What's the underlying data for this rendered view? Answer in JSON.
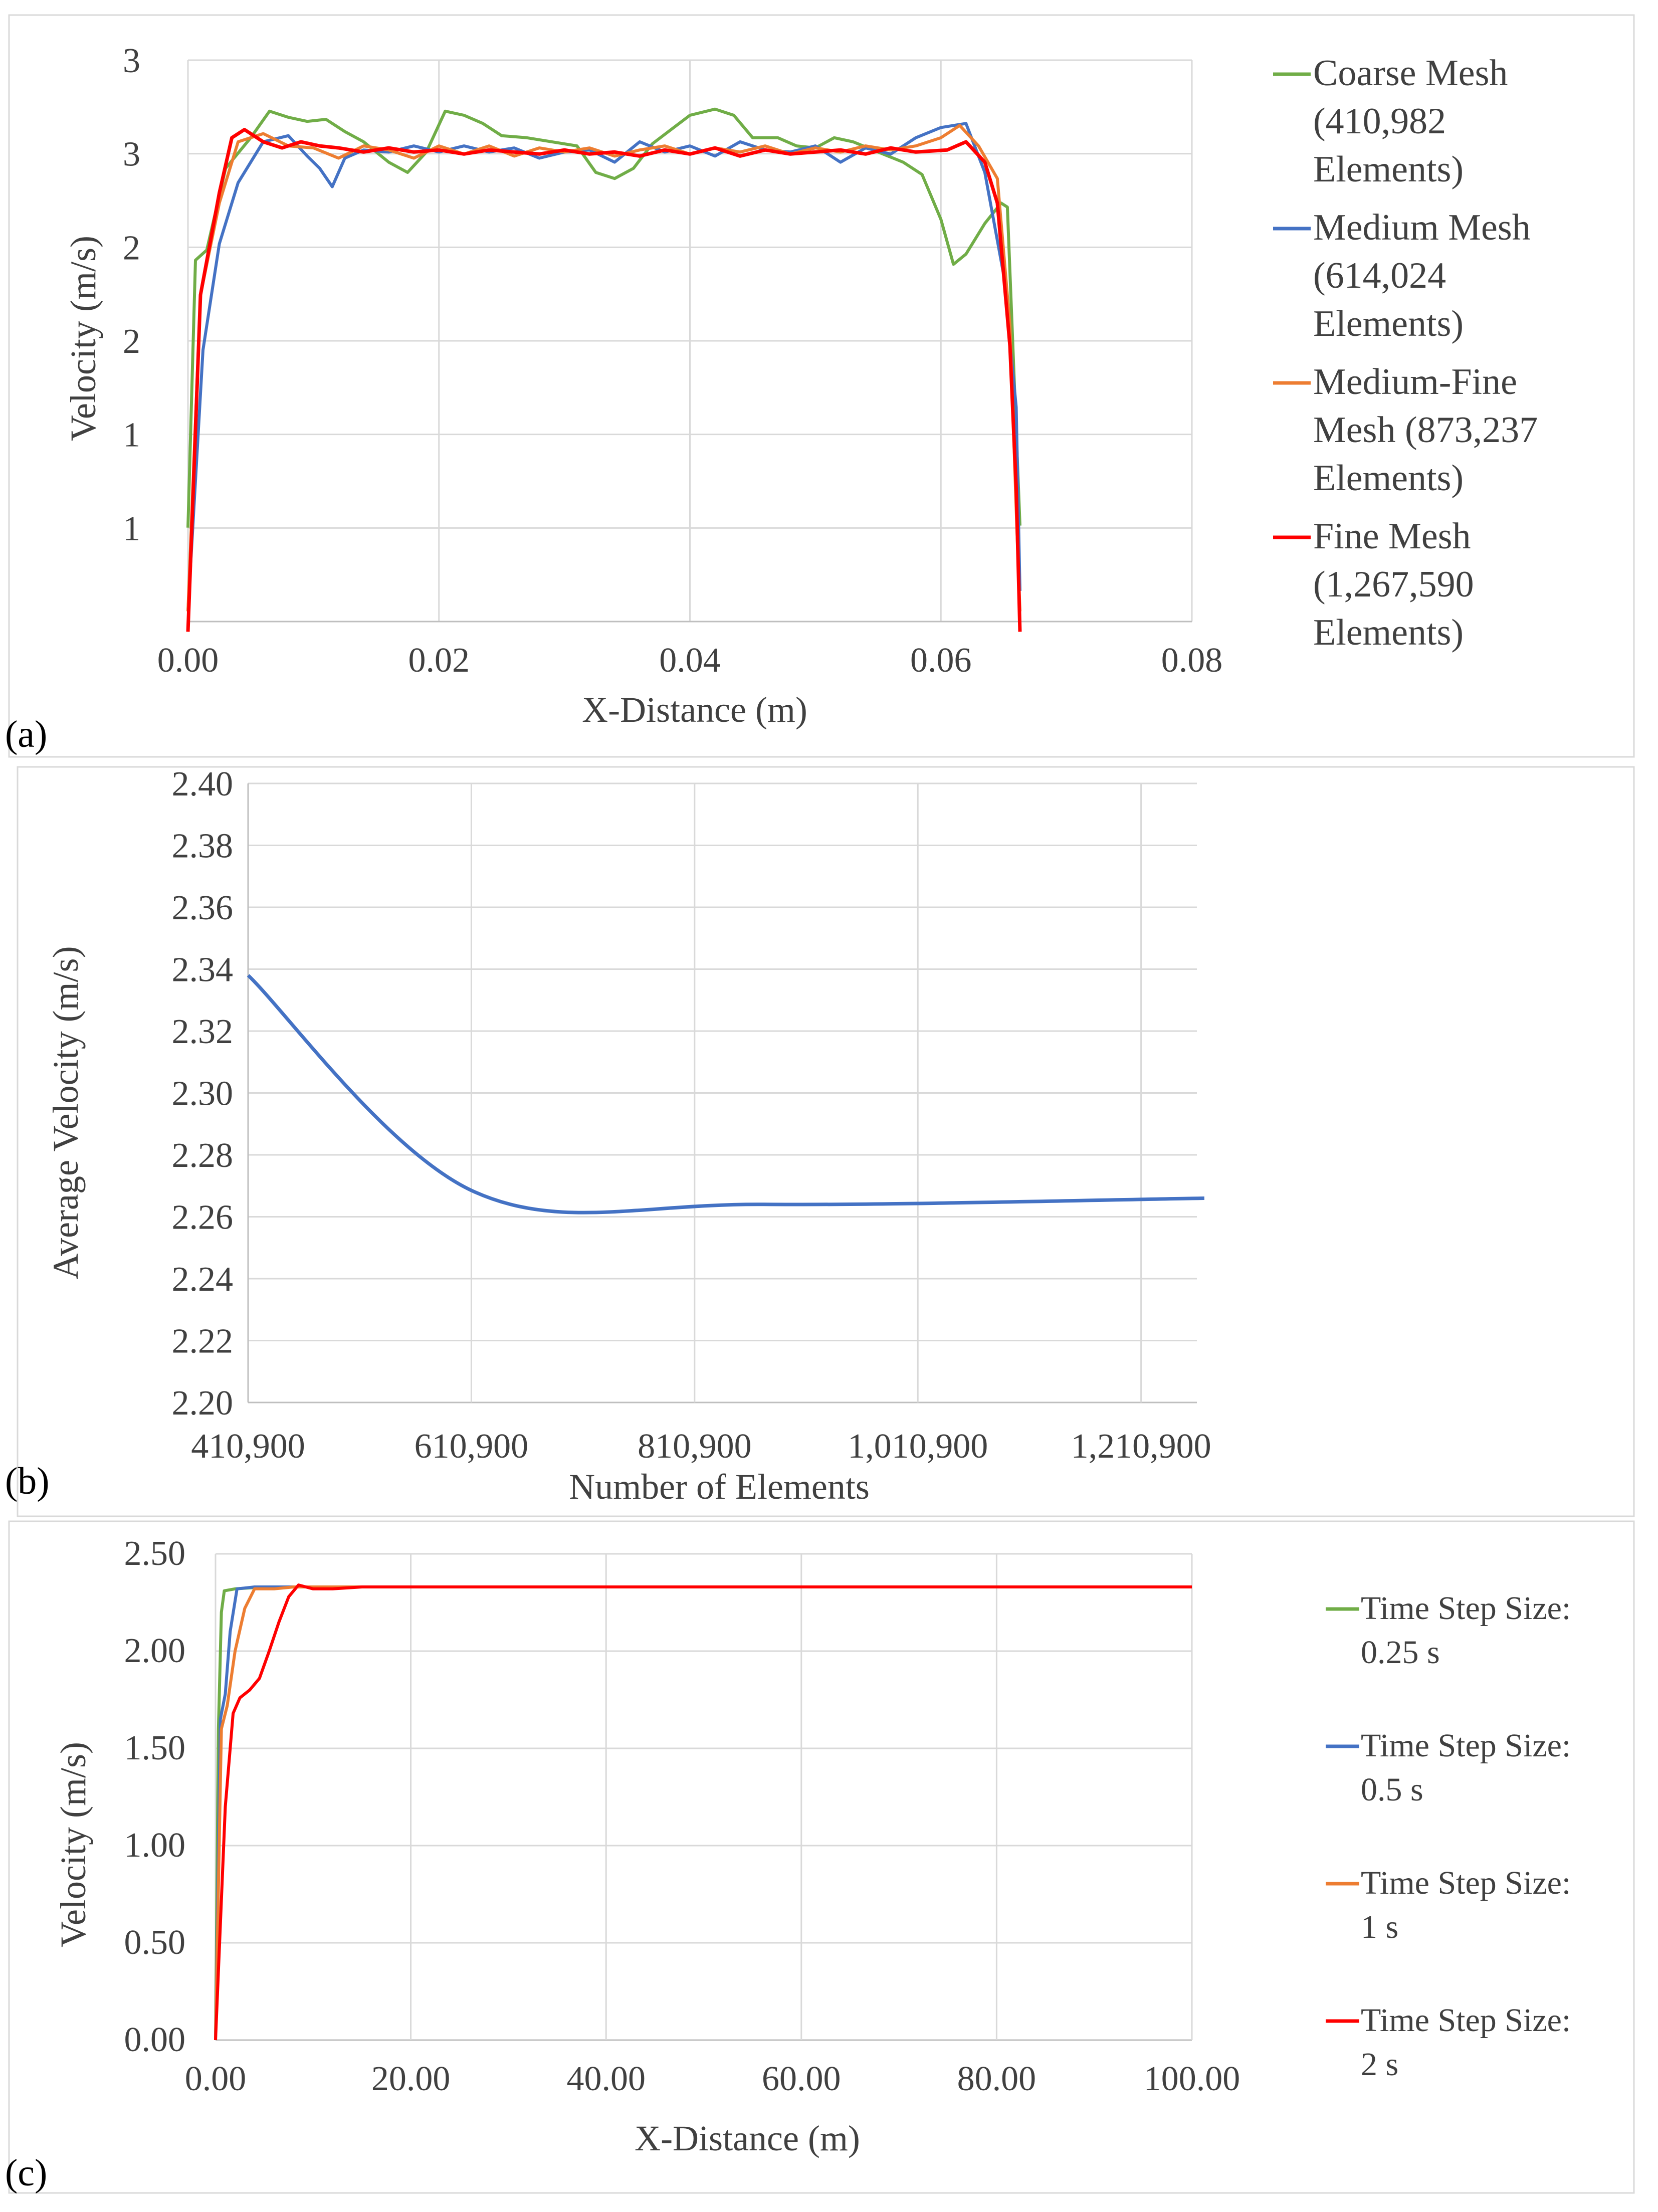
{
  "chart_data": [
    {
      "type": "line",
      "panel_label": "(a)",
      "xlabel": "X-Distance (m)",
      "ylabel": "Velocity (m/s)",
      "xlim": [
        0,
        0.08
      ],
      "x_ticks": [
        "0.00",
        "0.02",
        "0.04",
        "0.06",
        "0.08"
      ],
      "y_ticks": [
        "1",
        "1",
        "2",
        "2",
        "3",
        "3"
      ],
      "grid": true,
      "legend": "right",
      "series": [
        {
          "name": "Coarse Mesh (410,982 Elements)",
          "color": "#70AD47",
          "points": [
            [
              0.0,
              0.71
            ],
            [
              0.0006,
              2.02
            ],
            [
              0.0015,
              2.07
            ],
            [
              0.003,
              2.47
            ],
            [
              0.005,
              2.62
            ],
            [
              0.0065,
              2.75
            ],
            [
              0.008,
              2.72
            ],
            [
              0.0095,
              2.7
            ],
            [
              0.011,
              2.71
            ],
            [
              0.0125,
              2.65
            ],
            [
              0.014,
              2.6
            ],
            [
              0.016,
              2.5
            ],
            [
              0.0175,
              2.45
            ],
            [
              0.019,
              2.55
            ],
            [
              0.0205,
              2.75
            ],
            [
              0.022,
              2.73
            ],
            [
              0.0235,
              2.69
            ],
            [
              0.025,
              2.63
            ],
            [
              0.027,
              2.62
            ],
            [
              0.029,
              2.6
            ],
            [
              0.031,
              2.58
            ],
            [
              0.0325,
              2.45
            ],
            [
              0.034,
              2.42
            ],
            [
              0.0355,
              2.47
            ],
            [
              0.037,
              2.59
            ],
            [
              0.0385,
              2.66
            ],
            [
              0.04,
              2.73
            ],
            [
              0.042,
              2.76
            ],
            [
              0.0435,
              2.73
            ],
            [
              0.045,
              2.62
            ],
            [
              0.047,
              2.62
            ],
            [
              0.0485,
              2.58
            ],
            [
              0.05,
              2.57
            ],
            [
              0.0515,
              2.62
            ],
            [
              0.053,
              2.6
            ],
            [
              0.055,
              2.55
            ],
            [
              0.057,
              2.5
            ],
            [
              0.0585,
              2.44
            ],
            [
              0.06,
              2.22
            ],
            [
              0.061,
              2.0
            ],
            [
              0.062,
              2.05
            ],
            [
              0.0635,
              2.2
            ],
            [
              0.0648,
              2.3
            ],
            [
              0.0653,
              2.28
            ],
            [
              0.0663,
              0.72
            ]
          ]
        },
        {
          "name": "Medium Mesh (614,024 Elements)",
          "color": "#4472C4",
          "points": [
            [
              0.0,
              0.3
            ],
            [
              0.0012,
              1.58
            ],
            [
              0.0025,
              2.1
            ],
            [
              0.004,
              2.4
            ],
            [
              0.006,
              2.6
            ],
            [
              0.008,
              2.63
            ],
            [
              0.0095,
              2.53
            ],
            [
              0.0105,
              2.47
            ],
            [
              0.0115,
              2.38
            ],
            [
              0.0125,
              2.52
            ],
            [
              0.014,
              2.56
            ],
            [
              0.016,
              2.55
            ],
            [
              0.018,
              2.58
            ],
            [
              0.02,
              2.55
            ],
            [
              0.022,
              2.58
            ],
            [
              0.024,
              2.55
            ],
            [
              0.026,
              2.57
            ],
            [
              0.028,
              2.52
            ],
            [
              0.03,
              2.55
            ],
            [
              0.032,
              2.56
            ],
            [
              0.034,
              2.5
            ],
            [
              0.036,
              2.6
            ],
            [
              0.038,
              2.55
            ],
            [
              0.04,
              2.58
            ],
            [
              0.042,
              2.53
            ],
            [
              0.044,
              2.6
            ],
            [
              0.046,
              2.56
            ],
            [
              0.048,
              2.55
            ],
            [
              0.05,
              2.58
            ],
            [
              0.052,
              2.5
            ],
            [
              0.054,
              2.57
            ],
            [
              0.056,
              2.54
            ],
            [
              0.058,
              2.62
            ],
            [
              0.06,
              2.67
            ],
            [
              0.062,
              2.69
            ],
            [
              0.0635,
              2.45
            ],
            [
              0.065,
              1.95
            ],
            [
              0.066,
              1.3
            ],
            [
              0.0663,
              0.4
            ]
          ]
        },
        {
          "name": "Medium-Fine Mesh (873,237 Elements)",
          "color": "#ED7D31",
          "points": [
            [
              0.0,
              0.3
            ],
            [
              0.001,
              1.85
            ],
            [
              0.0025,
              2.3
            ],
            [
              0.004,
              2.6
            ],
            [
              0.006,
              2.64
            ],
            [
              0.008,
              2.58
            ],
            [
              0.01,
              2.57
            ],
            [
              0.012,
              2.52
            ],
            [
              0.014,
              2.58
            ],
            [
              0.016,
              2.56
            ],
            [
              0.018,
              2.52
            ],
            [
              0.02,
              2.58
            ],
            [
              0.022,
              2.54
            ],
            [
              0.024,
              2.58
            ],
            [
              0.026,
              2.53
            ],
            [
              0.028,
              2.57
            ],
            [
              0.03,
              2.55
            ],
            [
              0.032,
              2.57
            ],
            [
              0.034,
              2.53
            ],
            [
              0.036,
              2.56
            ],
            [
              0.038,
              2.58
            ],
            [
              0.04,
              2.54
            ],
            [
              0.042,
              2.57
            ],
            [
              0.044,
              2.55
            ],
            [
              0.046,
              2.58
            ],
            [
              0.048,
              2.54
            ],
            [
              0.05,
              2.57
            ],
            [
              0.052,
              2.55
            ],
            [
              0.054,
              2.58
            ],
            [
              0.056,
              2.56
            ],
            [
              0.058,
              2.58
            ],
            [
              0.06,
              2.62
            ],
            [
              0.0615,
              2.68
            ],
            [
              0.063,
              2.58
            ],
            [
              0.0645,
              2.42
            ],
            [
              0.0655,
              1.7
            ],
            [
              0.066,
              0.8
            ],
            [
              0.0663,
              0.3
            ]
          ]
        },
        {
          "name": "Fine Mesh (1,267,590 Elements)",
          "color": "#FF0000",
          "points": [
            [
              0.0,
              0.2
            ],
            [
              0.001,
              1.85
            ],
            [
              0.0025,
              2.35
            ],
            [
              0.0035,
              2.62
            ],
            [
              0.0045,
              2.66
            ],
            [
              0.006,
              2.6
            ],
            [
              0.0075,
              2.57
            ],
            [
              0.009,
              2.6
            ],
            [
              0.0105,
              2.58
            ],
            [
              0.012,
              2.57
            ],
            [
              0.014,
              2.55
            ],
            [
              0.016,
              2.57
            ],
            [
              0.018,
              2.55
            ],
            [
              0.02,
              2.56
            ],
            [
              0.022,
              2.54
            ],
            [
              0.024,
              2.56
            ],
            [
              0.026,
              2.55
            ],
            [
              0.028,
              2.54
            ],
            [
              0.03,
              2.56
            ],
            [
              0.032,
              2.54
            ],
            [
              0.034,
              2.55
            ],
            [
              0.036,
              2.53
            ],
            [
              0.038,
              2.56
            ],
            [
              0.04,
              2.54
            ],
            [
              0.042,
              2.57
            ],
            [
              0.044,
              2.53
            ],
            [
              0.046,
              2.56
            ],
            [
              0.048,
              2.54
            ],
            [
              0.05,
              2.55
            ],
            [
              0.052,
              2.56
            ],
            [
              0.054,
              2.54
            ],
            [
              0.056,
              2.57
            ],
            [
              0.058,
              2.55
            ],
            [
              0.0605,
              2.56
            ],
            [
              0.062,
              2.6
            ],
            [
              0.0635,
              2.5
            ],
            [
              0.0645,
              2.3
            ],
            [
              0.0655,
              1.6
            ],
            [
              0.066,
              0.9
            ],
            [
              0.0663,
              0.2
            ]
          ]
        }
      ]
    },
    {
      "type": "line",
      "panel_label": "(b)",
      "xlabel": "Number of Elements",
      "ylabel": "Average Velocity (m/s)",
      "xlim": [
        410900,
        1260900
      ],
      "ylim": [
        2.2,
        2.4
      ],
      "x_ticks": [
        {
          "value": 410900,
          "label": "410,900"
        },
        {
          "value": 610900,
          "label": "610,900"
        },
        {
          "value": 810900,
          "label": "810,900"
        },
        {
          "value": 1010900,
          "label": "1,010,900"
        },
        {
          "value": 1210900,
          "label": "1,210,900"
        }
      ],
      "y_ticks": [
        "2.20",
        "2.22",
        "2.24",
        "2.26",
        "2.28",
        "2.30",
        "2.32",
        "2.34",
        "2.36",
        "2.38",
        "2.40"
      ],
      "grid": true,
      "series": [
        {
          "color": "#4472C4",
          "points": [
            [
              410982,
              2.338
            ],
            [
              614024,
              2.268
            ],
            [
              873237,
              2.264
            ],
            [
              1267590,
              2.266
            ]
          ]
        }
      ]
    },
    {
      "type": "line",
      "panel_label": "(c)",
      "xlabel": "X-Distance (m)",
      "ylabel": "Velocity (m/s)",
      "xlim": [
        0,
        100
      ],
      "ylim": [
        0,
        2.5
      ],
      "x_ticks": [
        "0.00",
        "20.00",
        "40.00",
        "60.00",
        "80.00",
        "100.00"
      ],
      "y_ticks": [
        "0.00",
        "0.50",
        "1.00",
        "1.50",
        "2.00",
        "2.50"
      ],
      "grid": true,
      "legend": "right",
      "series": [
        {
          "name": "Time Step Size: 0.25 s",
          "color": "#70AD47",
          "points": [
            [
              0,
              0
            ],
            [
              0.3,
              1.6
            ],
            [
              0.6,
              2.2
            ],
            [
              0.9,
              2.31
            ],
            [
              2,
              2.32
            ],
            [
              5,
              2.33
            ],
            [
              100,
              2.33
            ]
          ]
        },
        {
          "name": "Time Step Size: 0.5 s",
          "color": "#4472C4",
          "points": [
            [
              0,
              0
            ],
            [
              0.5,
              1.65
            ],
            [
              1.0,
              1.78
            ],
            [
              1.5,
              2.1
            ],
            [
              2.2,
              2.32
            ],
            [
              4,
              2.33
            ],
            [
              100,
              2.33
            ]
          ]
        },
        {
          "name": "Time Step Size: 1 s",
          "color": "#ED7D31",
          "points": [
            [
              0,
              0
            ],
            [
              0.6,
              1.6
            ],
            [
              1.2,
              1.72
            ],
            [
              2,
              2.0
            ],
            [
              3,
              2.22
            ],
            [
              4,
              2.32
            ],
            [
              6,
              2.32
            ],
            [
              8,
              2.33
            ],
            [
              100,
              2.33
            ]
          ]
        },
        {
          "name": "Time Step Size: 2 s",
          "color": "#FF0000",
          "points": [
            [
              0,
              0
            ],
            [
              1,
              1.2
            ],
            [
              1.8,
              1.68
            ],
            [
              2.5,
              1.76
            ],
            [
              3.5,
              1.8
            ],
            [
              4.5,
              1.86
            ],
            [
              5.5,
              2.0
            ],
            [
              6.5,
              2.15
            ],
            [
              7.5,
              2.28
            ],
            [
              8.5,
              2.34
            ],
            [
              10,
              2.32
            ],
            [
              12,
              2.32
            ],
            [
              15,
              2.33
            ],
            [
              100,
              2.33
            ]
          ]
        }
      ]
    }
  ]
}
